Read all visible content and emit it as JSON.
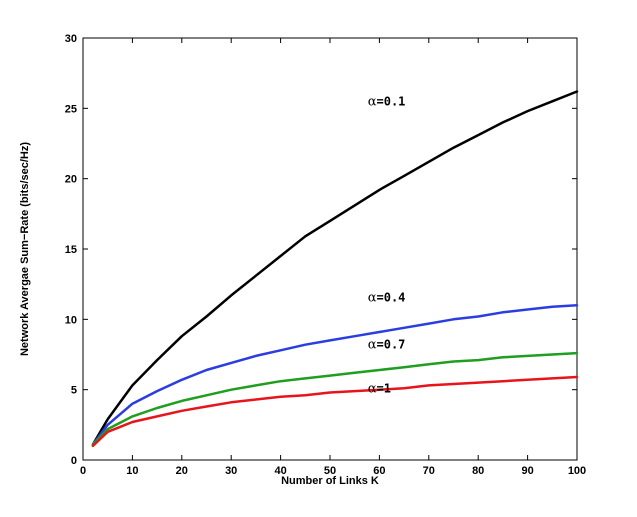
{
  "chart_data": {
    "type": "line",
    "title": "",
    "xlabel": "Number of Links K",
    "ylabel": "Network Avergae Sum−Rate (bits/sec/Hz)",
    "xlim": [
      0,
      100
    ],
    "ylim": [
      0,
      30
    ],
    "xticks": [
      0,
      10,
      20,
      30,
      40,
      50,
      60,
      70,
      80,
      90,
      100
    ],
    "yticks": [
      0,
      5,
      10,
      15,
      20,
      25,
      30
    ],
    "grid": false,
    "x": [
      2,
      5,
      10,
      15,
      20,
      25,
      30,
      35,
      40,
      45,
      50,
      55,
      60,
      65,
      70,
      75,
      80,
      85,
      90,
      95,
      100
    ],
    "series": [
      {
        "color": "#000000",
        "annotation": "α=0.1",
        "values": [
          1.1,
          2.9,
          5.3,
          7.1,
          8.8,
          10.2,
          11.7,
          13.1,
          14.5,
          15.9,
          17.0,
          18.1,
          19.2,
          20.2,
          21.2,
          22.2,
          23.1,
          24.0,
          24.8,
          25.5,
          26.2
        ]
      },
      {
        "color": "#2b3de0",
        "annotation": "α=0.4",
        "values": [
          1.1,
          2.5,
          4.0,
          4.9,
          5.7,
          6.4,
          6.9,
          7.4,
          7.8,
          8.2,
          8.5,
          8.8,
          9.1,
          9.4,
          9.7,
          10.0,
          10.2,
          10.5,
          10.7,
          10.9,
          11.0
        ]
      },
      {
        "color": "#1f9e1f",
        "annotation": "α=0.7",
        "values": [
          1.1,
          2.2,
          3.1,
          3.7,
          4.2,
          4.6,
          5.0,
          5.3,
          5.6,
          5.8,
          6.0,
          6.2,
          6.4,
          6.6,
          6.8,
          7.0,
          7.1,
          7.3,
          7.4,
          7.5,
          7.6
        ]
      },
      {
        "color": "#e8141c",
        "annotation": "α=1",
        "values": [
          1.0,
          2.0,
          2.7,
          3.1,
          3.5,
          3.8,
          4.1,
          4.3,
          4.5,
          4.6,
          4.8,
          4.9,
          5.0,
          5.1,
          5.3,
          5.4,
          5.5,
          5.6,
          5.7,
          5.8,
          5.9
        ]
      }
    ]
  }
}
